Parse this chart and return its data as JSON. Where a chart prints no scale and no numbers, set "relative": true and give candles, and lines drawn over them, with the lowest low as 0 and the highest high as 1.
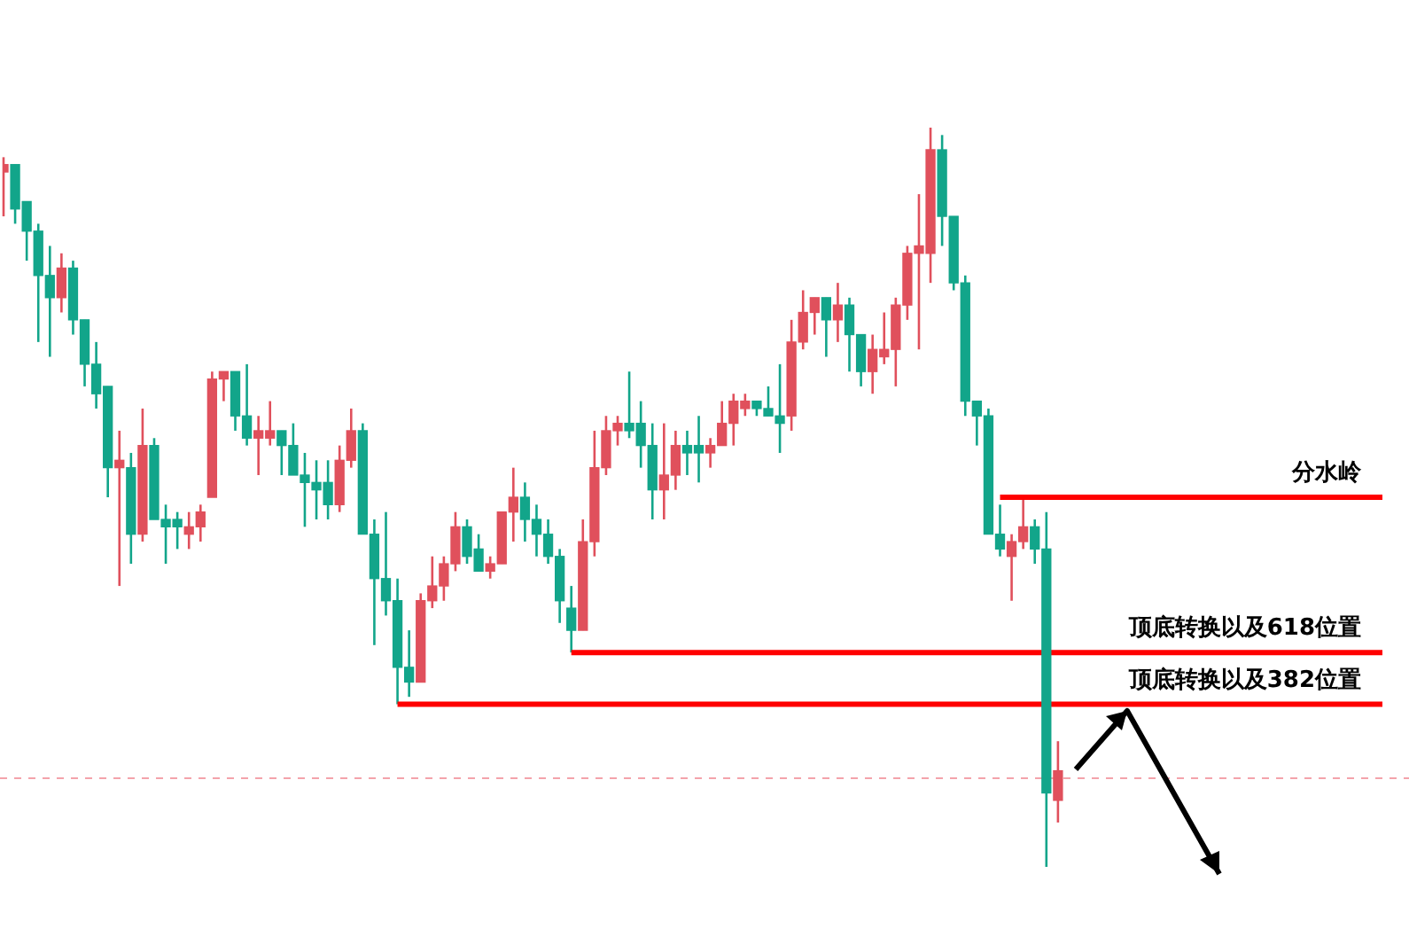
{
  "chart_data": {
    "type": "candlestick",
    "relative": true,
    "categories": [
      null,
      null,
      null,
      null,
      null,
      null,
      null,
      null,
      null,
      null,
      null,
      null,
      null,
      null,
      null,
      null,
      null,
      null,
      null,
      null,
      null,
      null,
      null,
      null,
      null,
      null,
      null,
      null,
      null,
      null,
      null,
      null,
      null,
      null,
      null,
      null,
      null,
      null,
      null,
      null,
      null,
      null,
      null,
      null,
      null,
      null,
      null,
      null,
      null,
      null,
      null,
      null,
      null,
      null,
      null,
      null,
      null,
      null,
      null,
      null,
      null,
      null,
      null,
      null,
      null,
      null,
      null,
      null,
      null,
      null,
      null,
      null,
      null,
      null,
      null,
      null,
      null,
      null,
      null,
      null,
      null,
      null,
      null,
      null,
      null,
      null,
      null,
      null,
      null,
      null,
      null,
      null,
      null,
      null,
      null,
      null,
      null,
      null,
      null,
      null,
      null,
      null,
      null,
      null,
      null,
      null,
      null,
      null,
      null,
      null,
      null,
      null,
      null,
      null,
      null,
      null,
      null,
      null,
      null,
      null
    ],
    "ohlc": [
      [
        0.94,
        0.96,
        0.88,
        0.95
      ],
      [
        0.95,
        0.95,
        0.87,
        0.89
      ],
      [
        0.9,
        0.9,
        0.82,
        0.86
      ],
      [
        0.86,
        0.87,
        0.71,
        0.8
      ],
      [
        0.8,
        0.84,
        0.69,
        0.77
      ],
      [
        0.77,
        0.83,
        0.75,
        0.81
      ],
      [
        0.81,
        0.82,
        0.72,
        0.74
      ],
      [
        0.74,
        0.74,
        0.65,
        0.68
      ],
      [
        0.68,
        0.71,
        0.62,
        0.64
      ],
      [
        0.65,
        0.65,
        0.5,
        0.54
      ],
      [
        0.54,
        0.59,
        0.38,
        0.55
      ],
      [
        0.54,
        0.56,
        0.41,
        0.45
      ],
      [
        0.45,
        0.62,
        0.44,
        0.57
      ],
      [
        0.57,
        0.58,
        0.47,
        0.47
      ],
      [
        0.47,
        0.49,
        0.41,
        0.46
      ],
      [
        0.47,
        0.48,
        0.43,
        0.46
      ],
      [
        0.45,
        0.48,
        0.43,
        0.46
      ],
      [
        0.46,
        0.49,
        0.44,
        0.48
      ],
      [
        0.5,
        0.67,
        0.5,
        0.66
      ],
      [
        0.66,
        0.67,
        0.63,
        0.67
      ],
      [
        0.67,
        0.67,
        0.59,
        0.61
      ],
      [
        0.61,
        0.68,
        0.57,
        0.58
      ],
      [
        0.58,
        0.61,
        0.53,
        0.59
      ],
      [
        0.58,
        0.63,
        0.57,
        0.59
      ],
      [
        0.59,
        0.59,
        0.53,
        0.57
      ],
      [
        0.57,
        0.6,
        0.53,
        0.53
      ],
      [
        0.53,
        0.56,
        0.46,
        0.52
      ],
      [
        0.52,
        0.55,
        0.47,
        0.51
      ],
      [
        0.52,
        0.55,
        0.47,
        0.49
      ],
      [
        0.49,
        0.57,
        0.48,
        0.55
      ],
      [
        0.55,
        0.62,
        0.54,
        0.59
      ],
      [
        0.59,
        0.6,
        0.45,
        0.45
      ],
      [
        0.45,
        0.47,
        0.3,
        0.39
      ],
      [
        0.39,
        0.48,
        0.34,
        0.36
      ],
      [
        0.36,
        0.39,
        0.22,
        0.27
      ],
      [
        0.27,
        0.32,
        0.23,
        0.25
      ],
      [
        0.25,
        0.37,
        0.25,
        0.36
      ],
      [
        0.36,
        0.42,
        0.35,
        0.38
      ],
      [
        0.38,
        0.42,
        0.36,
        0.41
      ],
      [
        0.41,
        0.48,
        0.4,
        0.46
      ],
      [
        0.46,
        0.47,
        0.41,
        0.42
      ],
      [
        0.43,
        0.45,
        0.4,
        0.4
      ],
      [
        0.4,
        0.42,
        0.39,
        0.41
      ],
      [
        0.41,
        0.48,
        0.41,
        0.48
      ],
      [
        0.48,
        0.54,
        0.44,
        0.5
      ],
      [
        0.5,
        0.52,
        0.44,
        0.47
      ],
      [
        0.47,
        0.49,
        0.42,
        0.45
      ],
      [
        0.45,
        0.47,
        0.41,
        0.42
      ],
      [
        0.42,
        0.43,
        0.33,
        0.36
      ],
      [
        0.35,
        0.38,
        0.29,
        0.32
      ],
      [
        0.32,
        0.47,
        0.32,
        0.44
      ],
      [
        0.44,
        0.59,
        0.42,
        0.54
      ],
      [
        0.54,
        0.61,
        0.53,
        0.59
      ],
      [
        0.59,
        0.61,
        0.57,
        0.6
      ],
      [
        0.6,
        0.67,
        0.58,
        0.59
      ],
      [
        0.6,
        0.63,
        0.54,
        0.57
      ],
      [
        0.57,
        0.6,
        0.47,
        0.51
      ],
      [
        0.51,
        0.6,
        0.47,
        0.53
      ],
      [
        0.53,
        0.59,
        0.51,
        0.57
      ],
      [
        0.57,
        0.59,
        0.53,
        0.56
      ],
      [
        0.57,
        0.61,
        0.52,
        0.56
      ],
      [
        0.56,
        0.58,
        0.54,
        0.57
      ],
      [
        0.57,
        0.63,
        0.57,
        0.6
      ],
      [
        0.6,
        0.64,
        0.57,
        0.63
      ],
      [
        0.62,
        0.64,
        0.61,
        0.63
      ],
      [
        0.63,
        0.63,
        0.61,
        0.62
      ],
      [
        0.62,
        0.65,
        0.61,
        0.61
      ],
      [
        0.61,
        0.68,
        0.56,
        0.6
      ],
      [
        0.61,
        0.74,
        0.59,
        0.71
      ],
      [
        0.71,
        0.78,
        0.7,
        0.75
      ],
      [
        0.75,
        0.77,
        0.72,
        0.77
      ],
      [
        0.77,
        0.77,
        0.69,
        0.74
      ],
      [
        0.74,
        0.79,
        0.71,
        0.76
      ],
      [
        0.76,
        0.77,
        0.67,
        0.72
      ],
      [
        0.72,
        0.72,
        0.65,
        0.67
      ],
      [
        0.67,
        0.72,
        0.64,
        0.7
      ],
      [
        0.69,
        0.75,
        0.68,
        0.7
      ],
      [
        0.7,
        0.77,
        0.65,
        0.76
      ],
      [
        0.76,
        0.84,
        0.74,
        0.83
      ],
      [
        0.83,
        0.91,
        0.7,
        0.84
      ],
      [
        0.83,
        1,
        0.79,
        0.97
      ],
      [
        0.97,
        0.99,
        0.84,
        0.88
      ],
      [
        0.88,
        0.88,
        0.78,
        0.79
      ],
      [
        0.79,
        0.8,
        0.61,
        0.63
      ],
      [
        0.63,
        0.63,
        0.57,
        0.61
      ],
      [
        0.61,
        0.62,
        0.45,
        0.45
      ],
      [
        0.45,
        0.49,
        0.42,
        0.43
      ],
      [
        0.42,
        0.45,
        0.36,
        0.44
      ],
      [
        0.44,
        0.5,
        0.43,
        0.46
      ],
      [
        0.46,
        0.47,
        0.41,
        0.43
      ],
      [
        0.43,
        0.48,
        0,
        0.1
      ],
      [
        0.09,
        0.17,
        0.06,
        0.13
      ],
      null,
      null,
      null,
      null,
      null,
      null,
      null,
      null,
      null,
      null,
      null,
      null,
      null,
      null,
      null,
      null,
      null,
      null,
      null,
      null,
      null,
      null,
      null,
      null,
      null,
      null,
      null,
      null
    ],
    "series": [
      {
        "type": "line",
        "name": "分水岭",
        "color": "#ff0000",
        "values": [
          null,
          null,
          null,
          null,
          null,
          null,
          null,
          null,
          null,
          null,
          null,
          null,
          null,
          null,
          null,
          null,
          null,
          null,
          null,
          null,
          null,
          null,
          null,
          null,
          null,
          null,
          null,
          null,
          null,
          null,
          null,
          null,
          null,
          null,
          null,
          null,
          null,
          null,
          null,
          null,
          null,
          null,
          null,
          null,
          null,
          null,
          null,
          null,
          null,
          null,
          null,
          null,
          null,
          null,
          null,
          null,
          null,
          null,
          null,
          null,
          null,
          null,
          null,
          null,
          null,
          null,
          null,
          null,
          null,
          null,
          null,
          null,
          null,
          null,
          null,
          null,
          null,
          null,
          null,
          null,
          null,
          null,
          null,
          null,
          null,
          null,
          0.5,
          0.5,
          0.5,
          0.5,
          0.5,
          0.5,
          0.5,
          0.5,
          0.5,
          0.5,
          0.5,
          0.5,
          0.5,
          0.5,
          0.5,
          0.5,
          0.5,
          0.5,
          0.5,
          0.5,
          0.5,
          0.5,
          0.5,
          0.5,
          0.5,
          0.5,
          0.5,
          0.5,
          0.5,
          0.5,
          0.5,
          0.5,
          0.5,
          0.5
        ]
      },
      {
        "type": "line",
        "name": "顶底转换以及618位置",
        "color": "#ff0000",
        "values": [
          null,
          null,
          null,
          null,
          null,
          null,
          null,
          null,
          null,
          null,
          null,
          null,
          null,
          null,
          null,
          null,
          null,
          null,
          null,
          null,
          null,
          null,
          null,
          null,
          null,
          null,
          null,
          null,
          null,
          null,
          null,
          null,
          null,
          null,
          null,
          null,
          null,
          null,
          null,
          null,
          null,
          null,
          null,
          null,
          null,
          null,
          null,
          null,
          null,
          0.29,
          0.29,
          0.29,
          0.29,
          0.29,
          0.29,
          0.29,
          0.29,
          0.29,
          0.29,
          0.29,
          0.29,
          0.29,
          0.29,
          0.29,
          0.29,
          0.29,
          0.29,
          0.29,
          0.29,
          0.29,
          0.29,
          0.29,
          0.29,
          0.29,
          0.29,
          0.29,
          0.29,
          0.29,
          0.29,
          0.29,
          0.29,
          0.29,
          0.29,
          0.29,
          0.29,
          0.29,
          0.29,
          0.29,
          0.29,
          0.29,
          0.29,
          0.29,
          0.29,
          0.29,
          0.29,
          0.29,
          0.29,
          0.29,
          0.29,
          0.29,
          0.29,
          0.29,
          0.29,
          0.29,
          0.29,
          0.29,
          0.29,
          0.29,
          0.29,
          0.29,
          0.29,
          0.29,
          0.29,
          0.29,
          0.29,
          0.29,
          0.29,
          0.29,
          0.29,
          0.29
        ]
      },
      {
        "type": "line",
        "name": "顶底转换以及382位置",
        "color": "#ff0000",
        "values": [
          null,
          null,
          null,
          null,
          null,
          null,
          null,
          null,
          null,
          null,
          null,
          null,
          null,
          null,
          null,
          null,
          null,
          null,
          null,
          null,
          null,
          null,
          null,
          null,
          null,
          null,
          null,
          null,
          null,
          null,
          null,
          null,
          null,
          null,
          0.22,
          0.22,
          0.22,
          0.22,
          0.22,
          0.22,
          0.22,
          0.22,
          0.22,
          0.22,
          0.22,
          0.22,
          0.22,
          0.22,
          0.22,
          0.22,
          0.22,
          0.22,
          0.22,
          0.22,
          0.22,
          0.22,
          0.22,
          0.22,
          0.22,
          0.22,
          0.22,
          0.22,
          0.22,
          0.22,
          0.22,
          0.22,
          0.22,
          0.22,
          0.22,
          0.22,
          0.22,
          0.22,
          0.22,
          0.22,
          0.22,
          0.22,
          0.22,
          0.22,
          0.22,
          0.22,
          0.22,
          0.22,
          0.22,
          0.22,
          0.22,
          0.22,
          0.22,
          0.22,
          0.22,
          0.22,
          0.22,
          0.22,
          0.22,
          0.22,
          0.22,
          0.22,
          0.22,
          0.22,
          0.22,
          0.22,
          0.22,
          0.22,
          0.22,
          0.22,
          0.22,
          0.22,
          0.22,
          0.22,
          0.22,
          0.22,
          0.22,
          0.22,
          0.22,
          0.22,
          0.22,
          0.22,
          0.22,
          0.22,
          0.22,
          0.22
        ]
      }
    ],
    "ref_lines": [
      {
        "axis": "y",
        "value": 0.12,
        "color": "#f4a3ab",
        "line_style": "dashed"
      }
    ]
  }
}
